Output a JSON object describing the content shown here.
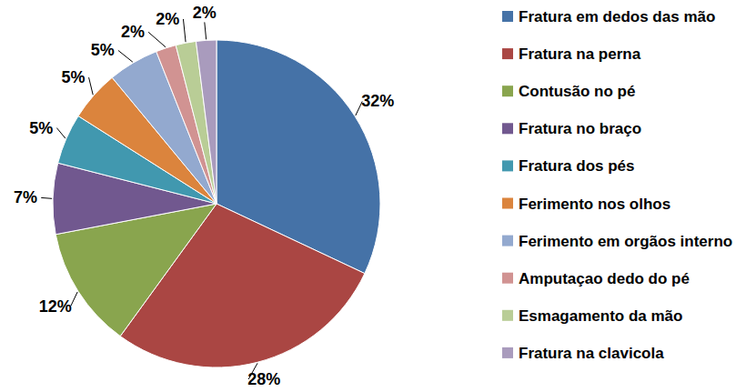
{
  "chart_data": {
    "type": "pie",
    "categories": [
      "Fratura em dedos das mão",
      "Fratura na perna",
      "Contusão no pé",
      "Fratura no braço",
      "Fratura dos pés",
      "Ferimento nos olhos",
      "Ferimento em orgãos interno",
      "Amputaçao dedo do pé",
      "Esmagamento da mão",
      "Fratura na clavicola"
    ],
    "values": [
      32,
      28,
      12,
      7,
      5,
      5,
      5,
      2,
      2,
      2
    ],
    "value_labels": [
      "32%",
      "28%",
      "12%",
      "7%",
      "5%",
      "5%",
      "5%",
      "2%",
      "2%",
      "2%"
    ],
    "colors": [
      "#4572A7",
      "#AA4643",
      "#89A54E",
      "#71588F",
      "#4198AF",
      "#DB843D",
      "#93A9CF",
      "#D19392",
      "#B9CD96",
      "#A99BBD"
    ],
    "data_labels": true,
    "legend": "right"
  }
}
